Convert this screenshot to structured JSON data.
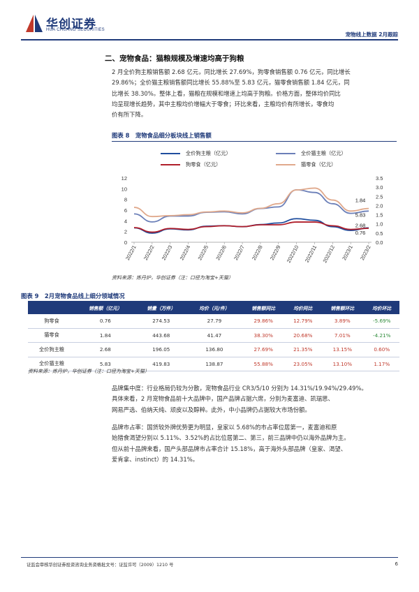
{
  "header": {
    "logo_name": "华创证券",
    "logo_en": "HUA CHUANG SECURITIES",
    "right_title": "宠物线上数据 2月跟踪"
  },
  "section": {
    "title": "二、宠物食品：猫粮规模及增速均高于狗粮",
    "paragraph1": [
      "2 月全价狗主粮销售额 2.68 亿元，同比增长 27.69%，狗零食销售额 0.76 亿元，同比增长",
      "29.86%；全价猫主粮销售额同比增长 55.88%至 5.83 亿元，猫零食销售额 1.84 亿元，同",
      "比增长 38.30%。整体上看，猫粮在规模和增速上均高于狗粮。价格方面，整体均价同比",
      "均呈现增长趋势，其中主粮均价增幅大于零食；环比来看，主粮均价有所增长，零食均",
      "价有所下降。"
    ]
  },
  "figure8": {
    "title": "图表 8　宠物食品细分板块线上销售额",
    "source": "资料来源：炼丹炉，华创证券（注：口径为淘宝+天猫）",
    "legend": [
      "全价狗主粮（亿元）",
      "全价猫主粮（亿元）",
      "狗零食（亿元）",
      "猫零食（亿元）"
    ]
  },
  "chart_data": {
    "type": "line",
    "x": [
      "2022/1",
      "2022/2",
      "2022/3",
      "2022/4",
      "2022/5",
      "2022/6",
      "2022/7",
      "2022/8",
      "2022/9",
      "2022/10",
      "2022/11",
      "2022/12",
      "2023/1",
      "2023/2"
    ],
    "left_axis": {
      "ticks": [
        0,
        2,
        4,
        6,
        8,
        10,
        12
      ],
      "range": [
        0,
        12
      ]
    },
    "right_axis": {
      "ticks": [
        "0.0",
        "0.5",
        "1.0",
        "1.5",
        "2.0",
        "2.5",
        "3.0",
        "3.5"
      ],
      "range": [
        0,
        3.5
      ]
    },
    "series": [
      {
        "name": "全价狗主粮（亿元）",
        "axis": "left",
        "color": "#1f4e9e",
        "values": [
          2.7,
          1.7,
          2.5,
          2.3,
          3.0,
          3.1,
          2.9,
          3.3,
          3.6,
          4.4,
          4.1,
          2.9,
          2.2,
          2.68
        ]
      },
      {
        "name": "全价猫主粮（亿元）",
        "axis": "left",
        "color": "#6b7fb8",
        "values": [
          5.3,
          3.8,
          4.9,
          4.9,
          5.6,
          5.7,
          5.3,
          6.3,
          6.6,
          9.8,
          9.3,
          7.2,
          5.4,
          5.83
        ]
      },
      {
        "name": "狗零食（亿元）",
        "axis": "right",
        "color": "#b01e2a",
        "values": [
          0.8,
          0.55,
          0.75,
          0.7,
          0.85,
          0.9,
          0.85,
          0.95,
          0.95,
          1.1,
          1.1,
          0.9,
          0.7,
          0.76
        ]
      },
      {
        "name": "猫零食（亿元）",
        "axis": "right",
        "color": "#e0a98c",
        "values": [
          1.9,
          1.4,
          1.45,
          1.5,
          1.65,
          1.7,
          1.6,
          1.85,
          2.1,
          2.85,
          2.95,
          2.3,
          1.7,
          1.84
        ]
      }
    ],
    "end_labels": [
      "1.84",
      "5.83",
      "2.68",
      "0.76"
    ],
    "grid": false
  },
  "table9": {
    "title": "图表 9　2月宠物食品线上细分领域情况",
    "headers": [
      "",
      "销售额（亿元）",
      "销量（万件）",
      "均价（元/件）",
      "销售额同比",
      "均价同比",
      "销售额环比",
      "均价环比"
    ],
    "rows": [
      [
        "狗零食",
        "0.76",
        "274.53",
        "27.79",
        "29.86%",
        "12.79%",
        "3.89%",
        "-5.69%"
      ],
      [
        "猫零食",
        "1.84",
        "443.68",
        "41.47",
        "38.30%",
        "20.68%",
        "7.01%",
        "-4.21%"
      ],
      [
        "全价狗主粮",
        "2.68",
        "196.05",
        "136.80",
        "27.69%",
        "21.35%",
        "13.15%",
        "0.60%"
      ],
      [
        "全价猫主粮",
        "5.83",
        "419.83",
        "138.87",
        "55.88%",
        "23.05%",
        "13.10%",
        "1.17%"
      ]
    ],
    "source": "资料来源：炼丹炉，华创证券（注：口径为淘宝+天猫）"
  },
  "brand": {
    "concentration": [
      "品牌集中度：行业格局仍较为分散，宠物食品行业 CR3/5/10 分别为 14.31%/19.94%/29.49%。",
      "具体来看，2 月宠物食品前十大品牌中，国产品牌占据六席，分别为麦富迪、凯瑞思、",
      "网易严选、伯纳天纯、顽皮以及醇粹。此外，中小品牌仍占据较大市场份额。"
    ],
    "share": [
      "品牌市占率：国货较外牌优势更为明显，皇家以 5.68%的市占率位居第一，麦富迪和原",
      "始猎食渴望分别以 5.11%、3.52%的占比位居第二、第三，前三品牌中仍以海外品牌为主。",
      "但从前十品牌来看，国产头部品牌市占率合计 15.18%，高于海外头部品牌（皇家、渴望、",
      "爱肯拿、instinct）的 14.31%。"
    ]
  },
  "footer": {
    "text": "证监会审核华创证券投资咨询业务资格批文号：证监许可（2009）1210 号",
    "page": "6"
  }
}
